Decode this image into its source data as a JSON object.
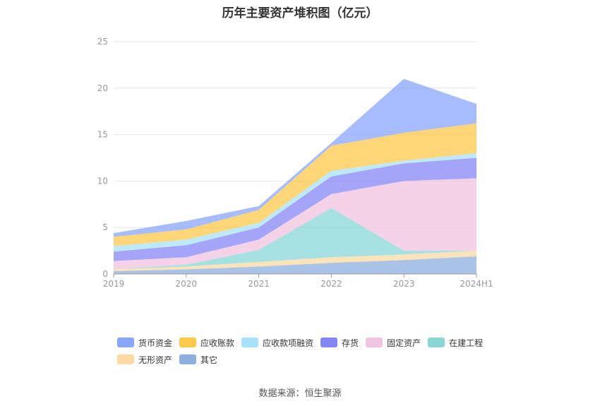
{
  "chart_data": {
    "type": "area",
    "stacked": true,
    "title": "历年主要资产堆积图（亿元）",
    "categories": [
      "2019",
      "2020",
      "2021",
      "2022",
      "2023",
      "2024H1"
    ],
    "ylim": [
      0,
      25
    ],
    "yticks": [
      "0",
      "5",
      "10",
      "15",
      "20",
      "25"
    ],
    "grid": true,
    "legend_position": "bottom",
    "series": [
      {
        "name": "其它",
        "color": "#8fafdf",
        "values": [
          0.3,
          0.5,
          0.8,
          1.2,
          1.5,
          1.9
        ]
      },
      {
        "name": "无形资产",
        "color": "#fdd9a3",
        "values": [
          0.2,
          0.3,
          0.5,
          0.6,
          0.6,
          0.6
        ]
      },
      {
        "name": "在建工程",
        "color": "#8ad6d7",
        "values": [
          0.0,
          0.2,
          1.3,
          5.3,
          0.4,
          0.0
        ]
      },
      {
        "name": "固定资产",
        "color": "#f0c4e0",
        "values": [
          0.9,
          0.8,
          1.1,
          1.5,
          7.5,
          7.8
        ]
      },
      {
        "name": "存货",
        "color": "#8586f6",
        "values": [
          1.0,
          1.3,
          1.3,
          1.9,
          1.9,
          2.2
        ]
      },
      {
        "name": "应收款项融资",
        "color": "#a8e1fa",
        "values": [
          0.6,
          0.6,
          0.5,
          0.6,
          0.3,
          0.5
        ]
      },
      {
        "name": "应收账款",
        "color": "#fec84a",
        "values": [
          1.0,
          1.1,
          1.4,
          2.7,
          3.0,
          3.2
        ]
      },
      {
        "name": "货币资金",
        "color": "#89a6fb",
        "values": [
          0.4,
          0.9,
          0.4,
          0.3,
          5.8,
          2.1
        ]
      }
    ],
    "legend_rows": [
      [
        {
          "name": "货币资金",
          "color": "#89a6fb"
        },
        {
          "name": "应收账款",
          "color": "#fec84a"
        },
        {
          "name": "应收款项融资",
          "color": "#a8e1fa"
        },
        {
          "name": "存货",
          "color": "#8586f6"
        },
        {
          "name": "固定资产",
          "color": "#f0c4e0"
        },
        {
          "name": "在建工程",
          "color": "#8ad6d7"
        }
      ],
      [
        {
          "name": "无形资产",
          "color": "#fdd9a3"
        },
        {
          "name": "其它",
          "color": "#8fafdf"
        }
      ]
    ]
  },
  "source": "数据来源：恒生聚源"
}
